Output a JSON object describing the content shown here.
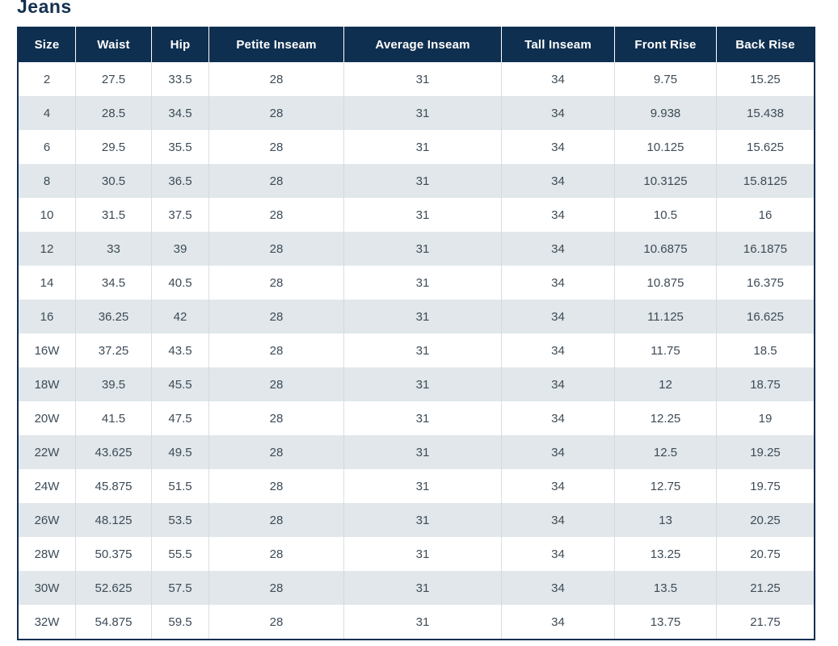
{
  "page_title": "Jeans",
  "table": {
    "columns": [
      "Size",
      "Waist",
      "Hip",
      "Petite Inseam",
      "Average Inseam",
      "Tall Inseam",
      "Front Rise",
      "Back Rise"
    ],
    "rows": [
      [
        "2",
        "27.5",
        "33.5",
        "28",
        "31",
        "34",
        "9.75",
        "15.25"
      ],
      [
        "4",
        "28.5",
        "34.5",
        "28",
        "31",
        "34",
        "9.938",
        "15.438"
      ],
      [
        "6",
        "29.5",
        "35.5",
        "28",
        "31",
        "34",
        "10.125",
        "15.625"
      ],
      [
        "8",
        "30.5",
        "36.5",
        "28",
        "31",
        "34",
        "10.3125",
        "15.8125"
      ],
      [
        "10",
        "31.5",
        "37.5",
        "28",
        "31",
        "34",
        "10.5",
        "16"
      ],
      [
        "12",
        "33",
        "39",
        "28",
        "31",
        "34",
        "10.6875",
        "16.1875"
      ],
      [
        "14",
        "34.5",
        "40.5",
        "28",
        "31",
        "34",
        "10.875",
        "16.375"
      ],
      [
        "16",
        "36.25",
        "42",
        "28",
        "31",
        "34",
        "11.125",
        "16.625"
      ],
      [
        "16W",
        "37.25",
        "43.5",
        "28",
        "31",
        "34",
        "11.75",
        "18.5"
      ],
      [
        "18W",
        "39.5",
        "45.5",
        "28",
        "31",
        "34",
        "12",
        "18.75"
      ],
      [
        "20W",
        "41.5",
        "47.5",
        "28",
        "31",
        "34",
        "12.25",
        "19"
      ],
      [
        "22W",
        "43.625",
        "49.5",
        "28",
        "31",
        "34",
        "12.5",
        "19.25"
      ],
      [
        "24W",
        "45.875",
        "51.5",
        "28",
        "31",
        "34",
        "12.75",
        "19.75"
      ],
      [
        "26W",
        "48.125",
        "53.5",
        "28",
        "31",
        "34",
        "13",
        "20.25"
      ],
      [
        "28W",
        "50.375",
        "55.5",
        "28",
        "31",
        "34",
        "13.25",
        "20.75"
      ],
      [
        "30W",
        "52.625",
        "57.5",
        "28",
        "31",
        "34",
        "13.5",
        "21.25"
      ],
      [
        "32W",
        "54.875",
        "59.5",
        "28",
        "31",
        "34",
        "13.75",
        "21.75"
      ]
    ]
  },
  "colors": {
    "header_bg": "#0f2f50",
    "header_text": "#ffffff",
    "stripe_bg": "#e1e7ea",
    "body_text": "#3d4b57",
    "title_text": "#13304f",
    "border_navy": "#0f2f50",
    "divider": "#d9dee2"
  }
}
